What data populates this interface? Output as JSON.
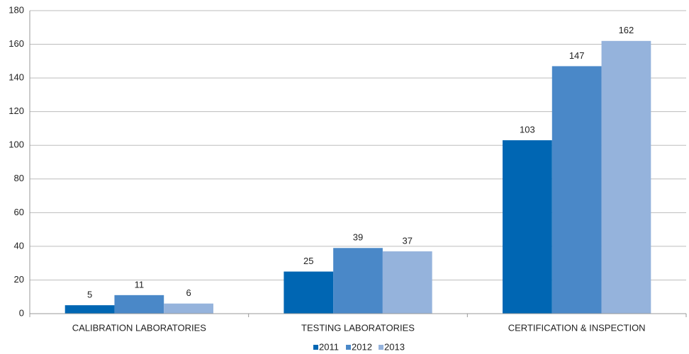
{
  "chart_data": {
    "type": "bar",
    "categories": [
      "CALIBRATION LABORATORIES",
      "TESTING LABORATORIES",
      "CERTIFICATION & INSPECTION"
    ],
    "series": [
      {
        "name": "2011",
        "color": "#0066b3",
        "values": [
          5,
          25,
          103
        ]
      },
      {
        "name": "2012",
        "color": "#4a88c8",
        "values": [
          11,
          39,
          147
        ]
      },
      {
        "name": "2013",
        "color": "#95b3dc",
        "values": [
          6,
          37,
          162
        ]
      }
    ],
    "ylim": [
      0,
      180
    ],
    "yticks": [
      0,
      20,
      40,
      60,
      80,
      100,
      120,
      140,
      160,
      180
    ],
    "grid": true,
    "legend": "bottom"
  }
}
